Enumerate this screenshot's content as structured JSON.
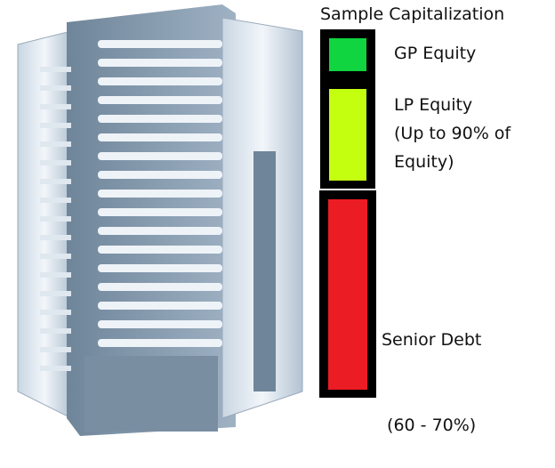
{
  "title": "Sample Capitalization",
  "segments": [
    {
      "label_lines": [
        "GP Equity"
      ],
      "color": "#10d440"
    },
    {
      "label_lines": [
        "LP Equity",
        "(Up to 90% of",
        "Equity)"
      ],
      "color": "#c4ff10"
    },
    {
      "label_lines": [
        "Senior Debt",
        " (60 - 70%)"
      ],
      "color": "#ec1c24"
    }
  ],
  "image": {
    "subject": "office-building-illustration"
  }
}
